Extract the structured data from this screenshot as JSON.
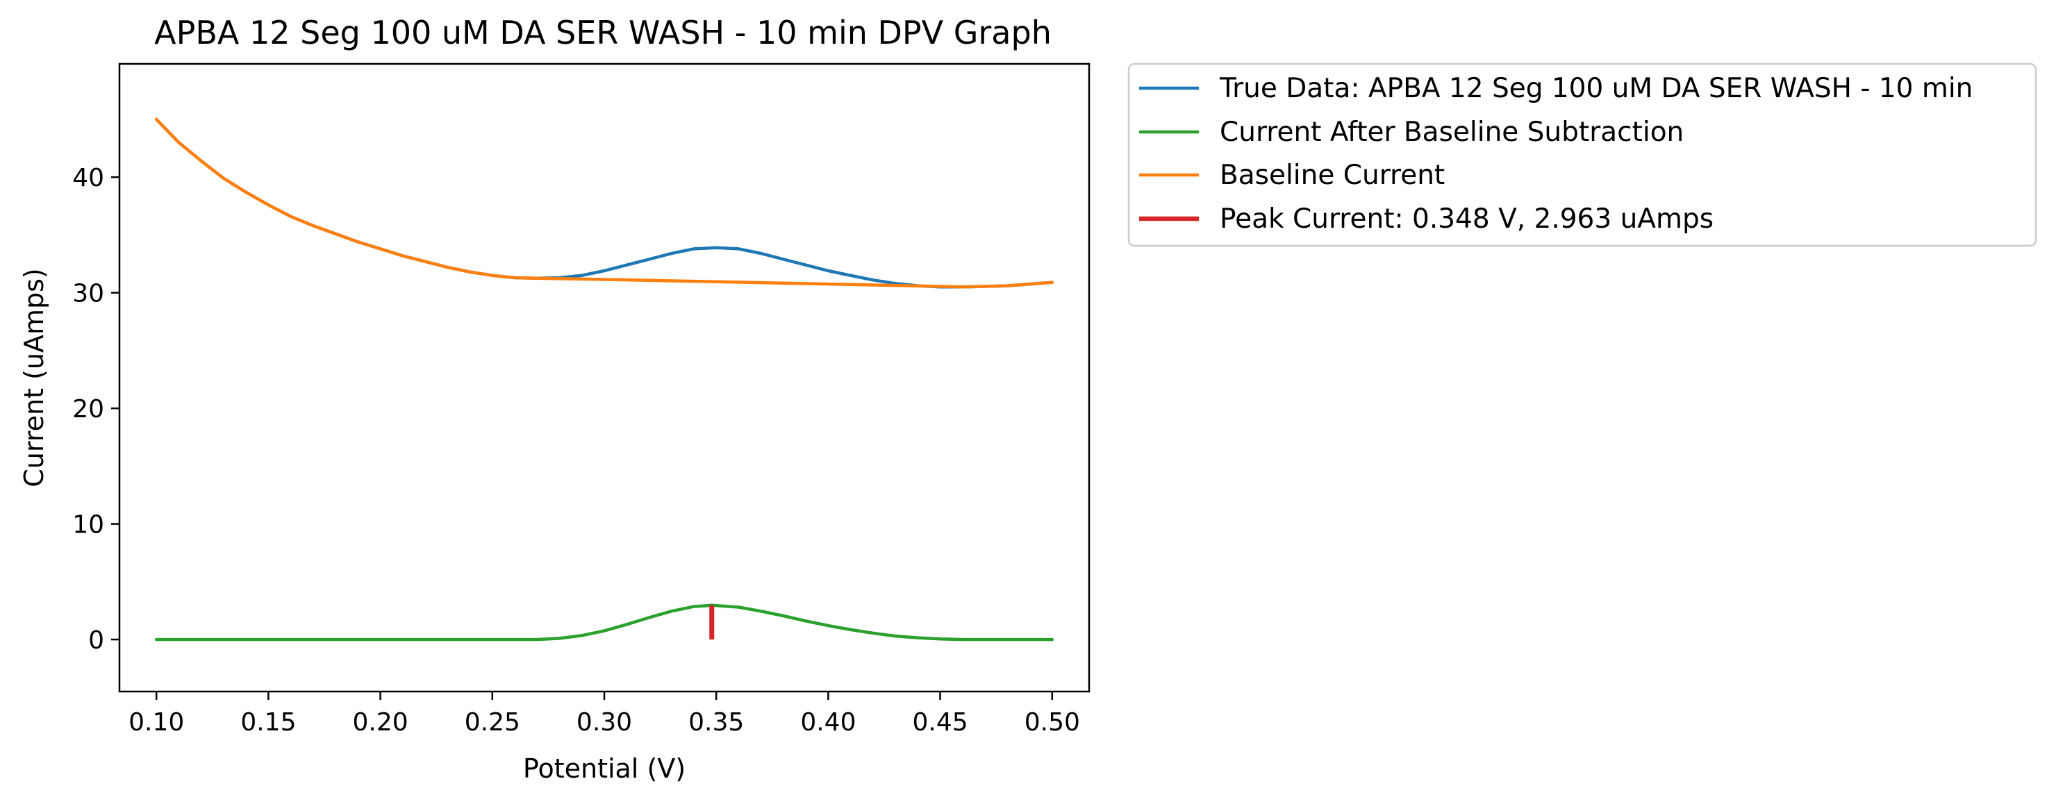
{
  "chart_data": {
    "type": "line",
    "title": "APBA 12 Seg 100 uM DA SER WASH - 10 min DPV Graph",
    "xlabel": "Potential (V)",
    "ylabel": "Current (uAmps)",
    "xlim": [
      0.0835,
      0.5165
    ],
    "ylim": [
      -4.5,
      49.8
    ],
    "xticks": [
      0.1,
      0.15,
      0.2,
      0.25,
      0.3,
      0.35,
      0.4,
      0.45,
      0.5
    ],
    "xtick_labels": [
      "0.10",
      "0.15",
      "0.20",
      "0.25",
      "0.30",
      "0.35",
      "0.40",
      "0.45",
      "0.50"
    ],
    "yticks": [
      0,
      10,
      20,
      30,
      40
    ],
    "ytick_labels": [
      "0",
      "10",
      "20",
      "30",
      "40"
    ],
    "grid": false,
    "legend_position": "outside-upper-right",
    "series": [
      {
        "name": "True Data: APBA 12 Seg 100 uM DA SER WASH - 10 min",
        "color": "#1f77b4",
        "x": [
          0.1,
          0.11,
          0.12,
          0.13,
          0.14,
          0.15,
          0.16,
          0.17,
          0.18,
          0.19,
          0.2,
          0.21,
          0.22,
          0.23,
          0.24,
          0.25,
          0.26,
          0.27,
          0.28,
          0.29,
          0.3,
          0.31,
          0.32,
          0.33,
          0.34,
          0.35,
          0.36,
          0.37,
          0.38,
          0.39,
          0.4,
          0.41,
          0.42,
          0.43,
          0.44,
          0.45,
          0.46,
          0.47,
          0.48,
          0.49,
          0.5
        ],
        "y": [
          45.0,
          43.0,
          41.4,
          39.9,
          38.7,
          37.6,
          36.6,
          35.8,
          35.1,
          34.4,
          33.8,
          33.2,
          32.7,
          32.2,
          31.8,
          31.5,
          31.3,
          31.25,
          31.3,
          31.5,
          31.9,
          32.4,
          32.9,
          33.4,
          33.8,
          33.9,
          33.8,
          33.4,
          32.9,
          32.4,
          31.9,
          31.5,
          31.1,
          30.8,
          30.6,
          30.5,
          30.5,
          30.55,
          30.6,
          30.75,
          30.9
        ]
      },
      {
        "name": "Current After Baseline Subtraction",
        "color": "#2ca02c",
        "x": [
          0.1,
          0.15,
          0.2,
          0.25,
          0.27,
          0.28,
          0.29,
          0.3,
          0.31,
          0.32,
          0.33,
          0.34,
          0.348,
          0.36,
          0.37,
          0.38,
          0.39,
          0.4,
          0.41,
          0.42,
          0.43,
          0.44,
          0.45,
          0.46,
          0.47,
          0.48,
          0.49,
          0.5
        ],
        "y": [
          0,
          0,
          0,
          0,
          0,
          0.1,
          0.35,
          0.75,
          1.3,
          1.9,
          2.45,
          2.85,
          2.963,
          2.8,
          2.45,
          2.05,
          1.6,
          1.2,
          0.85,
          0.55,
          0.3,
          0.15,
          0.05,
          0,
          0,
          0,
          0,
          0
        ]
      },
      {
        "name": "Baseline Current",
        "color": "#ff7f0e",
        "x": [
          0.1,
          0.11,
          0.12,
          0.13,
          0.14,
          0.15,
          0.16,
          0.17,
          0.18,
          0.19,
          0.2,
          0.21,
          0.22,
          0.23,
          0.24,
          0.25,
          0.26,
          0.27,
          0.3,
          0.35,
          0.4,
          0.45,
          0.46,
          0.47,
          0.48,
          0.49,
          0.5
        ],
        "y": [
          45.0,
          43.0,
          41.4,
          39.9,
          38.7,
          37.6,
          36.6,
          35.8,
          35.1,
          34.4,
          33.8,
          33.2,
          32.7,
          32.2,
          31.8,
          31.5,
          31.3,
          31.25,
          31.15,
          30.95,
          30.75,
          30.55,
          30.5,
          30.55,
          30.6,
          30.75,
          30.9
        ]
      }
    ],
    "peak_marker": {
      "name": "Peak Current: 0.348 V, 2.963 uAmps",
      "color": "#d62728",
      "x": 0.348,
      "y_from": 0,
      "y_to": 2.963
    }
  }
}
